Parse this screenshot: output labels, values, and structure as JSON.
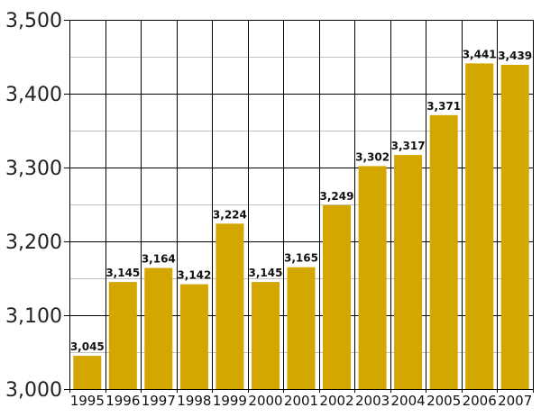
{
  "chart_data": {
    "type": "bar",
    "title": "",
    "xlabel": "",
    "ylabel": "",
    "categories": [
      "1995",
      "1996",
      "1997",
      "1998",
      "1999",
      "2000",
      "2001",
      "2002",
      "2003",
      "2004",
      "2005",
      "2006",
      "2007"
    ],
    "values": [
      3045,
      3145,
      3164,
      3142,
      3224,
      3145,
      3165,
      3249,
      3302,
      3317,
      3371,
      3441,
      3439
    ],
    "value_labels": [
      "3,045",
      "3,145",
      "3,164",
      "3,142",
      "3,224",
      "3,145",
      "3,165",
      "3,249",
      "3,302",
      "3,317",
      "3,371",
      "3,441",
      "3,439"
    ],
    "ylim": [
      3000,
      3500
    ],
    "yticks": [
      3000,
      3100,
      3200,
      3300,
      3400,
      3500
    ],
    "ytick_labels": [
      "3,000",
      "3,100",
      "3,200",
      "3,300",
      "3,400",
      "3,500"
    ],
    "grid": true,
    "bar_color": "#d4a600",
    "major_grid_color": "#000000",
    "minor_grid_color": "#c0c0c0"
  }
}
